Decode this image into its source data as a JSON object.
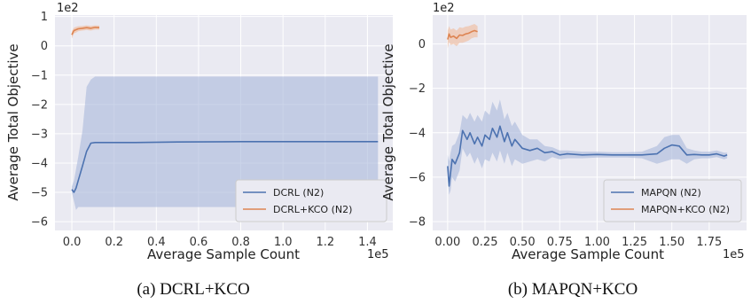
{
  "colors": {
    "panel_bg": "#eaeaf2",
    "grid": "#ffffff",
    "series_blue": "#4c72b0",
    "series_orange": "#dd8452",
    "band_blue": "#a9b8da",
    "band_orange": "#f0b99a"
  },
  "chart_data": [
    {
      "id": "a",
      "type": "line",
      "caption": "(a) DCRL+KCO",
      "xlabel": "Average Sample Count",
      "ylabel": "Average Total Objective",
      "x_multiplier_label": "1e5",
      "y_multiplier_label": "1e2",
      "xlim": [
        -0.08,
        1.52
      ],
      "ylim": [
        -6.3,
        1.05
      ],
      "x_ticks": [
        0.0,
        0.2,
        0.4,
        0.6,
        0.8,
        1.0,
        1.2,
        1.4
      ],
      "x_tick_labels": [
        "0.0",
        "0.2",
        "0.4",
        "0.6",
        "0.8",
        "1.0",
        "1.2",
        "1.4"
      ],
      "y_ticks": [
        -6,
        -5,
        -4,
        -3,
        -2,
        -1,
        0,
        1
      ],
      "y_tick_labels": [
        "−6",
        "−5",
        "−4",
        "−3",
        "−2",
        "−1",
        "0",
        "1"
      ],
      "grid": true,
      "legend_position": "bottom-right",
      "series": [
        {
          "name": "DCRL (N2)",
          "color": "#4c72b0",
          "x": [
            0.0,
            0.01,
            0.02,
            0.03,
            0.05,
            0.07,
            0.09,
            0.11,
            0.15,
            0.3,
            0.5,
            0.8,
            1.0,
            1.2,
            1.45
          ],
          "y": [
            -4.9,
            -5.0,
            -4.85,
            -4.6,
            -4.1,
            -3.6,
            -3.32,
            -3.3,
            -3.3,
            -3.3,
            -3.28,
            -3.27,
            -3.27,
            -3.27,
            -3.27
          ],
          "band_upper": [
            -4.8,
            -4.6,
            -4.2,
            -3.8,
            -2.9,
            -1.4,
            -1.15,
            -1.05,
            -1.05,
            -1.05,
            -1.05,
            -1.05,
            -1.05,
            -1.05,
            -1.05
          ],
          "band_lower": [
            -5.0,
            -5.3,
            -5.6,
            -5.5,
            -5.5,
            -5.5,
            -5.5,
            -5.5,
            -5.5,
            -5.5,
            -5.5,
            -5.5,
            -5.5,
            -5.5,
            -5.5
          ]
        },
        {
          "name": "DCRL+KCO (N2)",
          "color": "#dd8452",
          "x": [
            0.0,
            0.01,
            0.02,
            0.03,
            0.05,
            0.07,
            0.09,
            0.11,
            0.13
          ],
          "y": [
            0.38,
            0.52,
            0.55,
            0.58,
            0.6,
            0.62,
            0.6,
            0.63,
            0.62
          ],
          "band_upper": [
            0.5,
            0.62,
            0.65,
            0.67,
            0.68,
            0.7,
            0.68,
            0.7,
            0.69
          ],
          "band_lower": [
            0.25,
            0.42,
            0.45,
            0.5,
            0.52,
            0.54,
            0.52,
            0.55,
            0.55
          ]
        }
      ]
    },
    {
      "id": "b",
      "type": "line",
      "caption": "(b) MAPQN+KCO",
      "xlabel": "Average Sample Count",
      "ylabel": "Average Total Objective",
      "x_multiplier_label": "1e5",
      "y_multiplier_label": "1e2",
      "xlim": [
        -0.1,
        2.0
      ],
      "ylim": [
        -8.4,
        1.3
      ],
      "x_ticks": [
        0.0,
        0.25,
        0.5,
        0.75,
        1.0,
        1.25,
        1.5,
        1.75
      ],
      "x_tick_labels": [
        "0.00",
        "0.25",
        "0.50",
        "0.75",
        "1.00",
        "1.25",
        "1.50",
        "1.75"
      ],
      "y_ticks": [
        -8,
        -6,
        -4,
        -2,
        0
      ],
      "y_tick_labels": [
        "−8",
        "−6",
        "−4",
        "−2",
        "0"
      ],
      "grid": true,
      "legend_position": "bottom-right",
      "series": [
        {
          "name": "MAPQN (N2)",
          "color": "#4c72b0",
          "x": [
            0.0,
            0.01,
            0.02,
            0.03,
            0.05,
            0.08,
            0.1,
            0.13,
            0.15,
            0.18,
            0.2,
            0.23,
            0.25,
            0.28,
            0.3,
            0.33,
            0.35,
            0.38,
            0.4,
            0.43,
            0.45,
            0.5,
            0.55,
            0.6,
            0.65,
            0.7,
            0.75,
            0.8,
            0.9,
            1.0,
            1.1,
            1.2,
            1.3,
            1.4,
            1.45,
            1.5,
            1.55,
            1.6,
            1.65,
            1.7,
            1.75,
            1.8,
            1.85,
            1.87
          ],
          "y": [
            -5.5,
            -6.4,
            -5.8,
            -5.2,
            -5.4,
            -4.9,
            -3.9,
            -4.3,
            -4.0,
            -4.5,
            -4.2,
            -4.6,
            -4.1,
            -4.3,
            -3.8,
            -4.2,
            -3.7,
            -4.4,
            -4.0,
            -4.6,
            -4.3,
            -4.7,
            -4.8,
            -4.7,
            -4.9,
            -4.85,
            -5.0,
            -4.95,
            -5.0,
            -4.98,
            -5.0,
            -5.0,
            -5.0,
            -4.95,
            -4.7,
            -4.55,
            -4.6,
            -5.0,
            -4.98,
            -5.0,
            -5.0,
            -4.95,
            -5.05,
            -5.0
          ],
          "band_upper": [
            -5.0,
            -5.3,
            -4.9,
            -4.6,
            -4.5,
            -4.0,
            -3.2,
            -3.4,
            -3.1,
            -3.5,
            -3.2,
            -3.5,
            -3.0,
            -3.2,
            -2.6,
            -3.0,
            -2.5,
            -3.4,
            -3.1,
            -3.7,
            -3.5,
            -4.1,
            -4.3,
            -4.3,
            -4.6,
            -4.65,
            -4.8,
            -4.8,
            -4.85,
            -4.85,
            -4.88,
            -4.88,
            -4.85,
            -4.6,
            -4.2,
            -4.1,
            -4.1,
            -4.7,
            -4.8,
            -4.85,
            -4.85,
            -4.8,
            -4.9,
            -4.9
          ],
          "band_lower": [
            -6.0,
            -6.8,
            -6.6,
            -6.0,
            -6.2,
            -5.7,
            -4.7,
            -5.1,
            -4.9,
            -5.4,
            -5.1,
            -5.6,
            -5.2,
            -5.3,
            -4.9,
            -5.3,
            -4.8,
            -5.4,
            -4.9,
            -5.5,
            -5.2,
            -5.4,
            -5.3,
            -5.2,
            -5.3,
            -5.1,
            -5.2,
            -5.15,
            -5.15,
            -5.12,
            -5.12,
            -5.12,
            -5.15,
            -5.4,
            -5.3,
            -5.2,
            -5.2,
            -5.4,
            -5.2,
            -5.15,
            -5.15,
            -5.1,
            -5.2,
            -5.15
          ]
        },
        {
          "name": "MAPQN+KCO (N2)",
          "color": "#dd8452",
          "x": [
            0.0,
            0.01,
            0.02,
            0.04,
            0.06,
            0.08,
            0.1,
            0.12,
            0.14,
            0.16,
            0.18,
            0.2
          ],
          "y": [
            0.2,
            0.45,
            0.3,
            0.35,
            0.25,
            0.4,
            0.38,
            0.45,
            0.48,
            0.55,
            0.6,
            0.55
          ],
          "band_upper": [
            0.6,
            0.8,
            0.65,
            0.7,
            0.6,
            0.75,
            0.72,
            0.78,
            0.8,
            0.85,
            0.9,
            0.8
          ],
          "band_lower": [
            -0.2,
            0.1,
            -0.05,
            0.0,
            -0.1,
            0.05,
            0.05,
            0.1,
            0.15,
            0.25,
            0.3,
            0.3
          ]
        }
      ]
    }
  ]
}
